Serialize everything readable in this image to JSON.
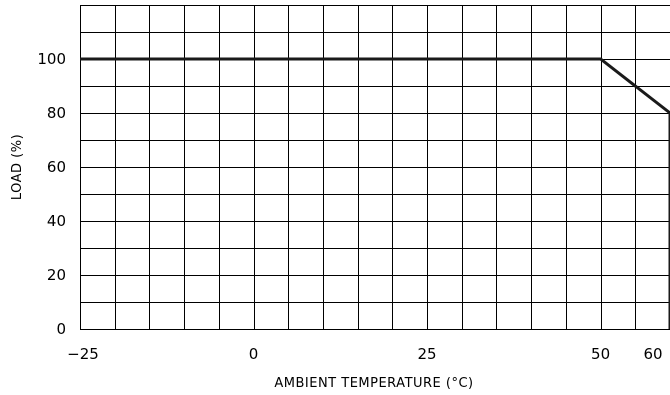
{
  "chart_data": {
    "type": "line",
    "title": "",
    "xlabel": "AMBIENT TEMPERATURE (°C)",
    "ylabel": "LOAD (%)",
    "xlim": [
      -25,
      60
    ],
    "ylim": [
      0,
      120
    ],
    "xticks": [
      -25,
      0,
      25,
      50,
      60
    ],
    "xtick_labels": [
      "−25",
      "0",
      "25",
      "50",
      "60"
    ],
    "yticks": [
      0,
      20,
      40,
      60,
      80,
      100
    ],
    "ytick_labels": [
      "0",
      "20",
      "40",
      "60",
      "80",
      "100"
    ],
    "grid": true,
    "series": [
      {
        "x": [
          -25,
          50,
          60,
          60
        ],
        "y": [
          100,
          100,
          80,
          0
        ]
      }
    ]
  },
  "colors": {
    "grid": "#000000",
    "line": "#1a1a1a",
    "background": "#ffffff"
  }
}
